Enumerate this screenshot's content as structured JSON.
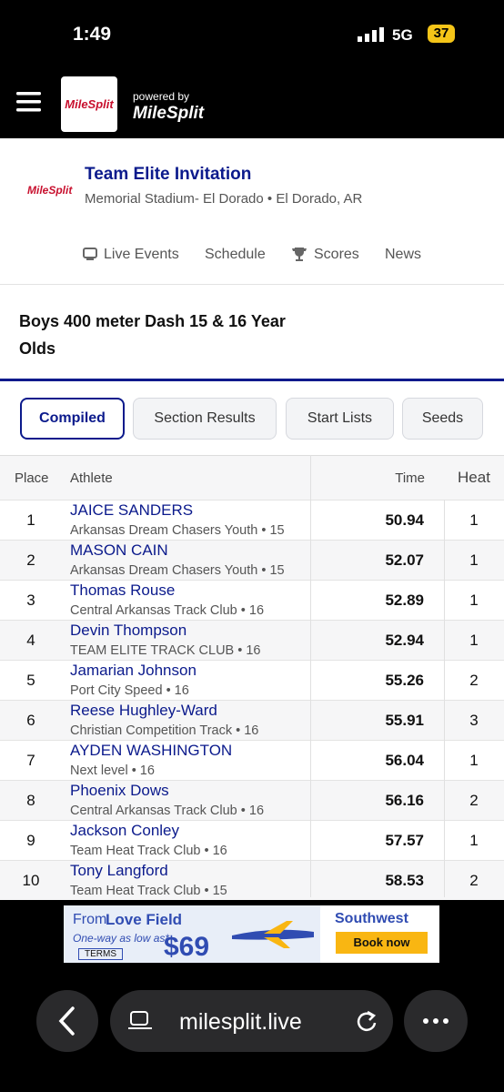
{
  "status_bar": {
    "time": "1:49",
    "network": "5G",
    "battery": "37"
  },
  "header": {
    "logo": "MileSplit",
    "powered_by": "powered by",
    "brand": "MileSplit"
  },
  "meet": {
    "logo": "MileSplit",
    "title": "Team Elite Invitation",
    "location": "Memorial Stadium- El Dorado • El Dorado, AR"
  },
  "nav": [
    "Live Events",
    "Schedule",
    "Scores",
    "News"
  ],
  "event_title": "Boys 400 meter Dash 15 & 16 Year Olds",
  "tabs": [
    "Compiled",
    "Section Results",
    "Start Lists",
    "Seeds"
  ],
  "table": {
    "headers": [
      "Place",
      "Athlete",
      "Time",
      "Heat"
    ],
    "rows": [
      [
        1,
        "JAICE SANDERS",
        "Arkansas Dream Chasers Youth • 15",
        50.94,
        1
      ],
      [
        2,
        "MASON CAIN",
        "Arkansas Dream Chasers Youth • 15",
        52.07,
        1
      ],
      [
        3,
        "Thomas Rouse",
        "Central Arkansas Track Club • 16",
        52.89,
        1
      ],
      [
        4,
        "Devin Thompson",
        "TEAM ELITE TRACK CLUB • 16",
        52.94,
        1
      ],
      [
        5,
        "Jamarian Johnson",
        "Port City Speed • 16",
        55.26,
        2
      ],
      [
        6,
        "Reese Hughley-Ward",
        "Christian Competition Track • 16",
        55.91,
        3
      ],
      [
        7,
        "AYDEN WASHINGTON",
        "Next level • 16",
        56.04,
        1
      ],
      [
        8,
        "Phoenix Dows",
        "Central Arkansas Track Club • 16",
        56.16,
        2
      ],
      [
        9,
        "Jackson Conley",
        "Team Heat Track Club • 16",
        57.57,
        1
      ],
      [
        10,
        "Tony Langford",
        "Team Heat Track Club • 15",
        58.53,
        2
      ]
    ]
  },
  "ad": {
    "from": "From",
    "place": "Love Field",
    "offer": "One-way as low as*",
    "price": "$69",
    "terms": "TERMS",
    "brand": "Southwest",
    "cta": "Book now"
  },
  "browser": {
    "url": "milesplit.live"
  }
}
